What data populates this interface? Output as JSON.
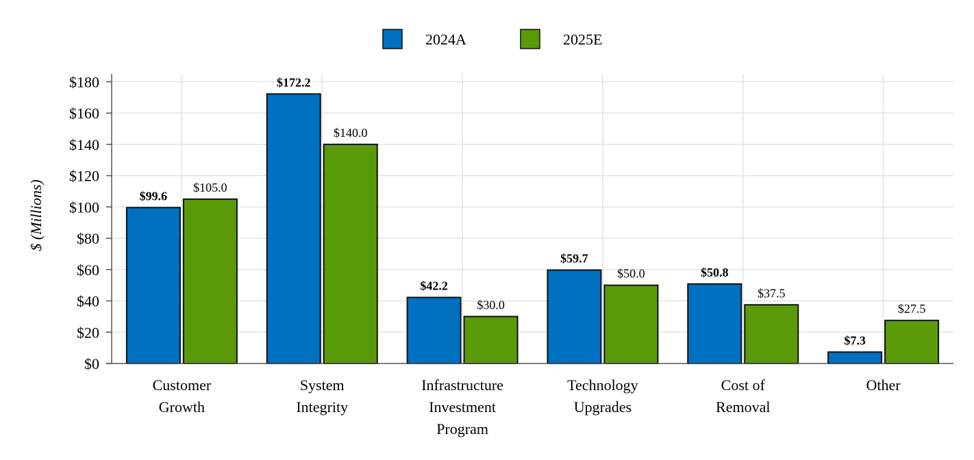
{
  "chart_data": {
    "type": "bar",
    "title": "",
    "xlabel": "",
    "ylabel": "$ (Millions)",
    "ylim": [
      0,
      180
    ],
    "ytick_step": 20,
    "ytick_prefix": "$",
    "grid": true,
    "legend_position": "top-center",
    "categories": [
      [
        "Customer",
        "Growth"
      ],
      [
        "System",
        "Integrity"
      ],
      [
        "Infrastructure",
        "Investment",
        "Program"
      ],
      [
        "Technology",
        "Upgrades"
      ],
      [
        "Cost of",
        "Removal"
      ],
      [
        "Other"
      ]
    ],
    "series": [
      {
        "name": "2024A",
        "color": "#0070C0",
        "label_weight": "bold",
        "values": [
          99.6,
          172.2,
          42.2,
          59.7,
          50.8,
          7.3
        ],
        "labels": [
          "$99.6",
          "$172.2",
          "$42.2",
          "$59.7",
          "$50.8",
          "$7.3"
        ]
      },
      {
        "name": "2025E",
        "color": "#5A9A08",
        "label_weight": "normal",
        "values": [
          105.0,
          140.0,
          30.0,
          50.0,
          37.5,
          27.5
        ],
        "labels": [
          "$105.0",
          "$140.0",
          "$30.0",
          "$50.0",
          "$37.5",
          "$27.5"
        ]
      }
    ]
  }
}
